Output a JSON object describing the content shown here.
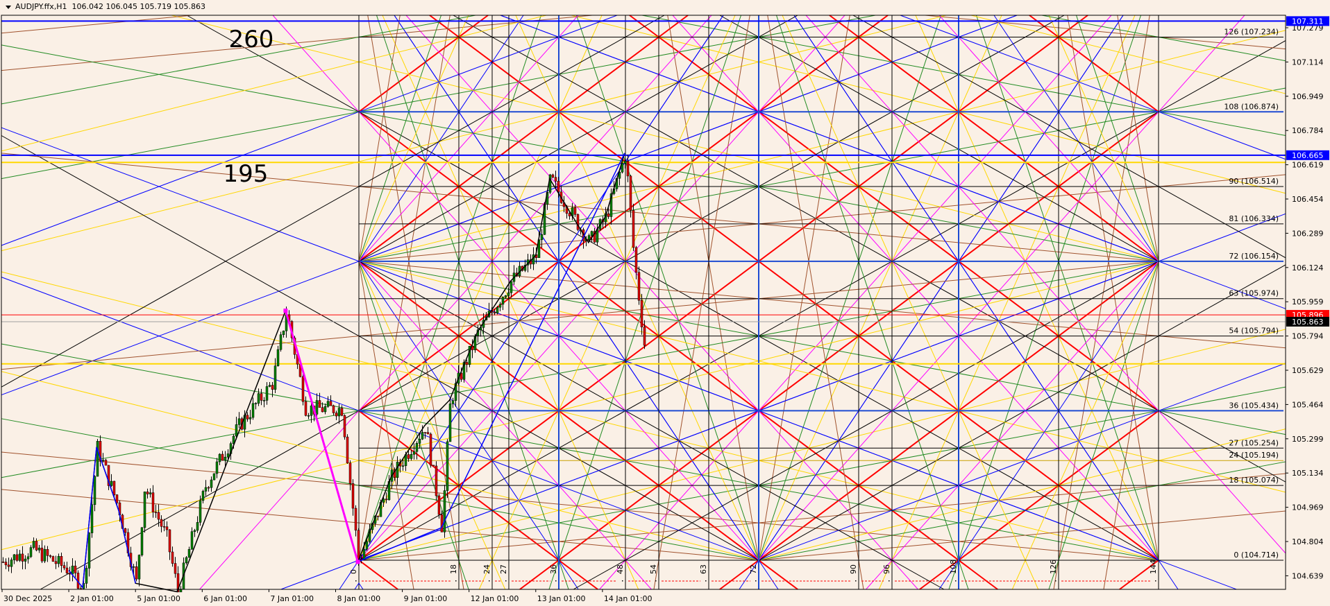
{
  "header": {
    "symbol": "AUDJPY.ffx,H1",
    "ohlc": "106.042 106.045 105.719 105.863",
    "menu_icon": "triangle-down-icon"
  },
  "annotations": [
    "260",
    "195"
  ],
  "colors": {
    "background": "#FAF0E6",
    "bull": "#008000",
    "bear": "#E00000",
    "grid_red": "#FF0000",
    "blue": "#0000FF"
  },
  "chart_data": {
    "type": "candlestick",
    "title": "AUDJPY.ffx,H1",
    "x_tick_labels": [
      "30 Dec 2025",
      "2 Jan 01:00",
      "5 Jan 01:00",
      "6 Jan 01:00",
      "7 Jan 01:00",
      "8 Jan 01:00",
      "9 Jan 01:00",
      "12 Jan 01:00",
      "13 Jan 01:00",
      "14 Jan 01:00"
    ],
    "y_tick_labels": [
      "107.279",
      "107.114",
      "106.949",
      "106.784",
      "106.619",
      "106.454",
      "106.289",
      "106.124",
      "105.959",
      "105.794",
      "105.629",
      "105.464",
      "105.299",
      "105.134",
      "104.969",
      "104.804",
      "104.639"
    ],
    "ylim": [
      104.58,
      107.4
    ],
    "grid": false,
    "last_price": 105.863,
    "price_path": [
      {
        "time": "30 Dec 01:00",
        "price": 104.706
      },
      {
        "time": "30 Dec 12:00",
        "price": 104.767
      },
      {
        "time": "2 Jan 01:00",
        "price": 104.665
      },
      {
        "time": "2 Jan 06:00",
        "price": 104.583
      },
      {
        "time": "2 Jan 11:00",
        "price": 105.259
      },
      {
        "time": "2 Jan 19:00",
        "price": 104.952
      },
      {
        "time": "5 Jan 01:00",
        "price": 104.603
      },
      {
        "time": "5 Jan 04:00",
        "price": 105.067
      },
      {
        "time": "5 Jan 12:00",
        "price": 104.82
      },
      {
        "time": "5 Jan 16:00",
        "price": 104.562
      },
      {
        "time": "6 Jan 02:00",
        "price": 105.075
      },
      {
        "time": "6 Jan 14:00",
        "price": 105.362
      },
      {
        "time": "7 Jan 02:00",
        "price": 105.567
      },
      {
        "time": "7 Jan 07:00",
        "price": 105.916
      },
      {
        "time": "7 Jan 14:00",
        "price": 105.444
      },
      {
        "time": "8 Jan 03:00",
        "price": 105.444
      },
      {
        "time": "8 Jan 09:00",
        "price": 104.706
      },
      {
        "time": "8 Jan 21:00",
        "price": 105.116
      },
      {
        "time": "9 Jan 09:00",
        "price": 105.362
      },
      {
        "time": "9 Jan 15:00",
        "price": 104.87
      },
      {
        "time": "9 Jan 18:00",
        "price": 105.485
      },
      {
        "time": "12 Jan 04:00",
        "price": 105.813
      },
      {
        "time": "12 Jan 16:00",
        "price": 106.059
      },
      {
        "time": "13 Jan 01:00",
        "price": 106.182
      },
      {
        "time": "13 Jan 06:00",
        "price": 106.552
      },
      {
        "time": "13 Jan 20:00",
        "price": 106.244
      },
      {
        "time": "14 Jan 02:00",
        "price": 106.367
      },
      {
        "time": "14 Jan 09:00",
        "price": 106.675
      },
      {
        "time": "14 Jan 12:00",
        "price": 106.183
      },
      {
        "time": "14 Jan 16:00",
        "price": 105.731
      }
    ],
    "price_badges": [
      {
        "label": "107.311",
        "price": 107.311,
        "color": "#0000FF",
        "text_color": "#FFFFFF"
      },
      {
        "label": "106.665",
        "price": 106.665,
        "color": "#0000FF",
        "text_color": "#FFFFFF"
      },
      {
        "label": "105.896",
        "price": 105.896,
        "color": "#FF0000",
        "text_color": "#FFFFFF"
      },
      {
        "label": "105.863",
        "price": 105.863,
        "color": "#000000",
        "text_color": "#FFFFFF"
      }
    ],
    "horizontal_lines": [
      {
        "price": 107.311,
        "color": "#0000FF"
      },
      {
        "price": 106.665,
        "color": "#0000FF"
      },
      {
        "price": 106.63,
        "color": "#FFD700"
      },
      {
        "price": 105.896,
        "color": "#FF0000"
      },
      {
        "price": 105.863,
        "color": "#A0A0A0"
      },
      {
        "price": 105.66,
        "color": "#FFD700"
      }
    ],
    "gann": {
      "base_price": 104.714,
      "price_per_unit": 0.02,
      "size": 144,
      "levels": [
        {
          "n": 126,
          "label": "126 (107.234)"
        },
        {
          "n": 108,
          "label": "108 (106.874)"
        },
        {
          "n": 90,
          "label": "90 (106.514)"
        },
        {
          "n": 81,
          "label": "81 (106.334)"
        },
        {
          "n": 72,
          "label": "72 (106.154)"
        },
        {
          "n": 63,
          "label": "63 (105.974)"
        },
        {
          "n": 54,
          "label": "54 (105.794)"
        },
        {
          "n": 36,
          "label": "36 (105.434)"
        },
        {
          "n": 27,
          "label": "27 (105.254)"
        },
        {
          "n": 24,
          "label": "24 (105.194)"
        },
        {
          "n": 18,
          "label": "18 (105.074)"
        },
        {
          "n": 0,
          "label": "0 (104.714)"
        }
      ],
      "time_labels": [
        "0",
        "18",
        "24",
        "27",
        "36",
        "48",
        "54",
        "63",
        "72",
        "90",
        "96",
        "108",
        "126",
        "144"
      ]
    }
  }
}
